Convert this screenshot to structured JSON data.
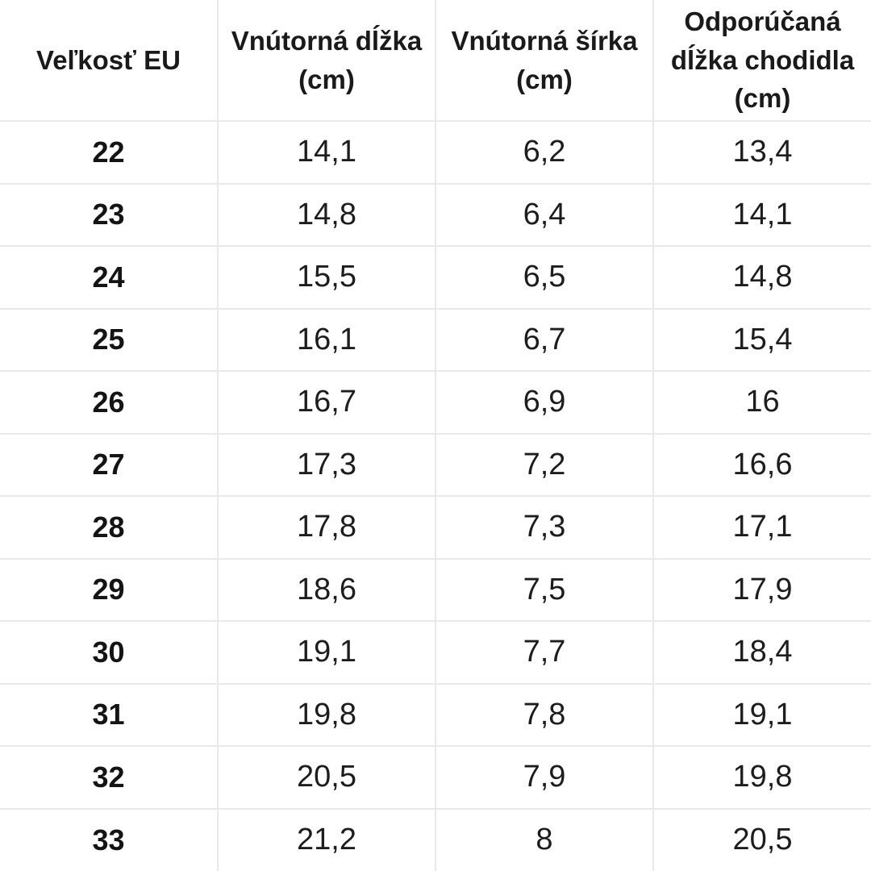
{
  "chart_data": {
    "type": "table",
    "title": "",
    "columns": [
      "Veľkosť EU",
      "Vnútorná dĺžka (cm)",
      "Vnútorná šírka (cm)",
      "Odporúčaná dĺžka chodidla (cm)"
    ],
    "rows": [
      [
        "22",
        "14,1",
        "6,2",
        "13,4"
      ],
      [
        "23",
        "14,8",
        "6,4",
        "14,1"
      ],
      [
        "24",
        "15,5",
        "6,5",
        "14,8"
      ],
      [
        "25",
        "16,1",
        "6,7",
        "15,4"
      ],
      [
        "26",
        "16,7",
        "6,9",
        "16"
      ],
      [
        "27",
        "17,3",
        "7,2",
        "16,6"
      ],
      [
        "28",
        "17,8",
        "7,3",
        "17,1"
      ],
      [
        "29",
        "18,6",
        "7,5",
        "17,9"
      ],
      [
        "30",
        "19,1",
        "7,7",
        "18,4"
      ],
      [
        "31",
        "19,8",
        "7,8",
        "19,1"
      ],
      [
        "32",
        "20,5",
        "7,9",
        "19,8"
      ],
      [
        "33",
        "21,2",
        "8",
        "20,5"
      ]
    ],
    "layout": {
      "grid": true,
      "grid_color": "#e9e9e9",
      "background": "#ffffff",
      "text_color": "#1a1a1a",
      "header_bold": true,
      "first_column_bold": true
    }
  }
}
